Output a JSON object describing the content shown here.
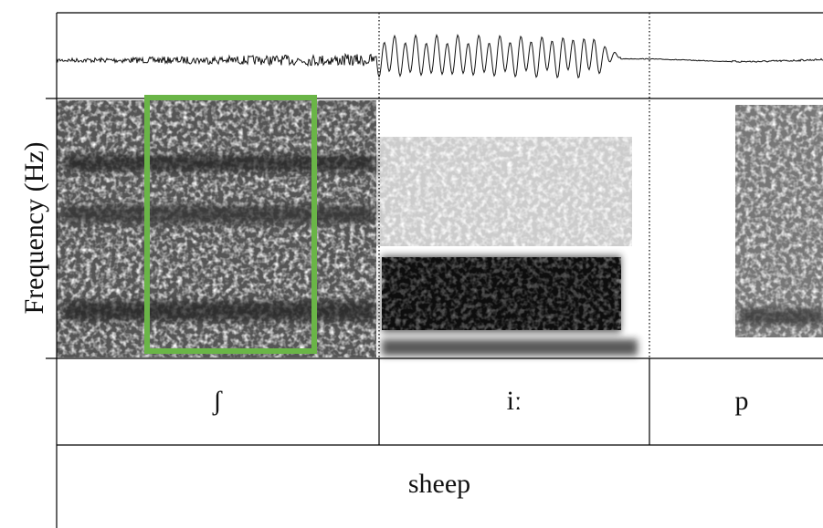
{
  "axis_label": "Frequency (Hz)",
  "segments": [
    "ʃ",
    "iː",
    "p"
  ],
  "word": "sheep"
}
